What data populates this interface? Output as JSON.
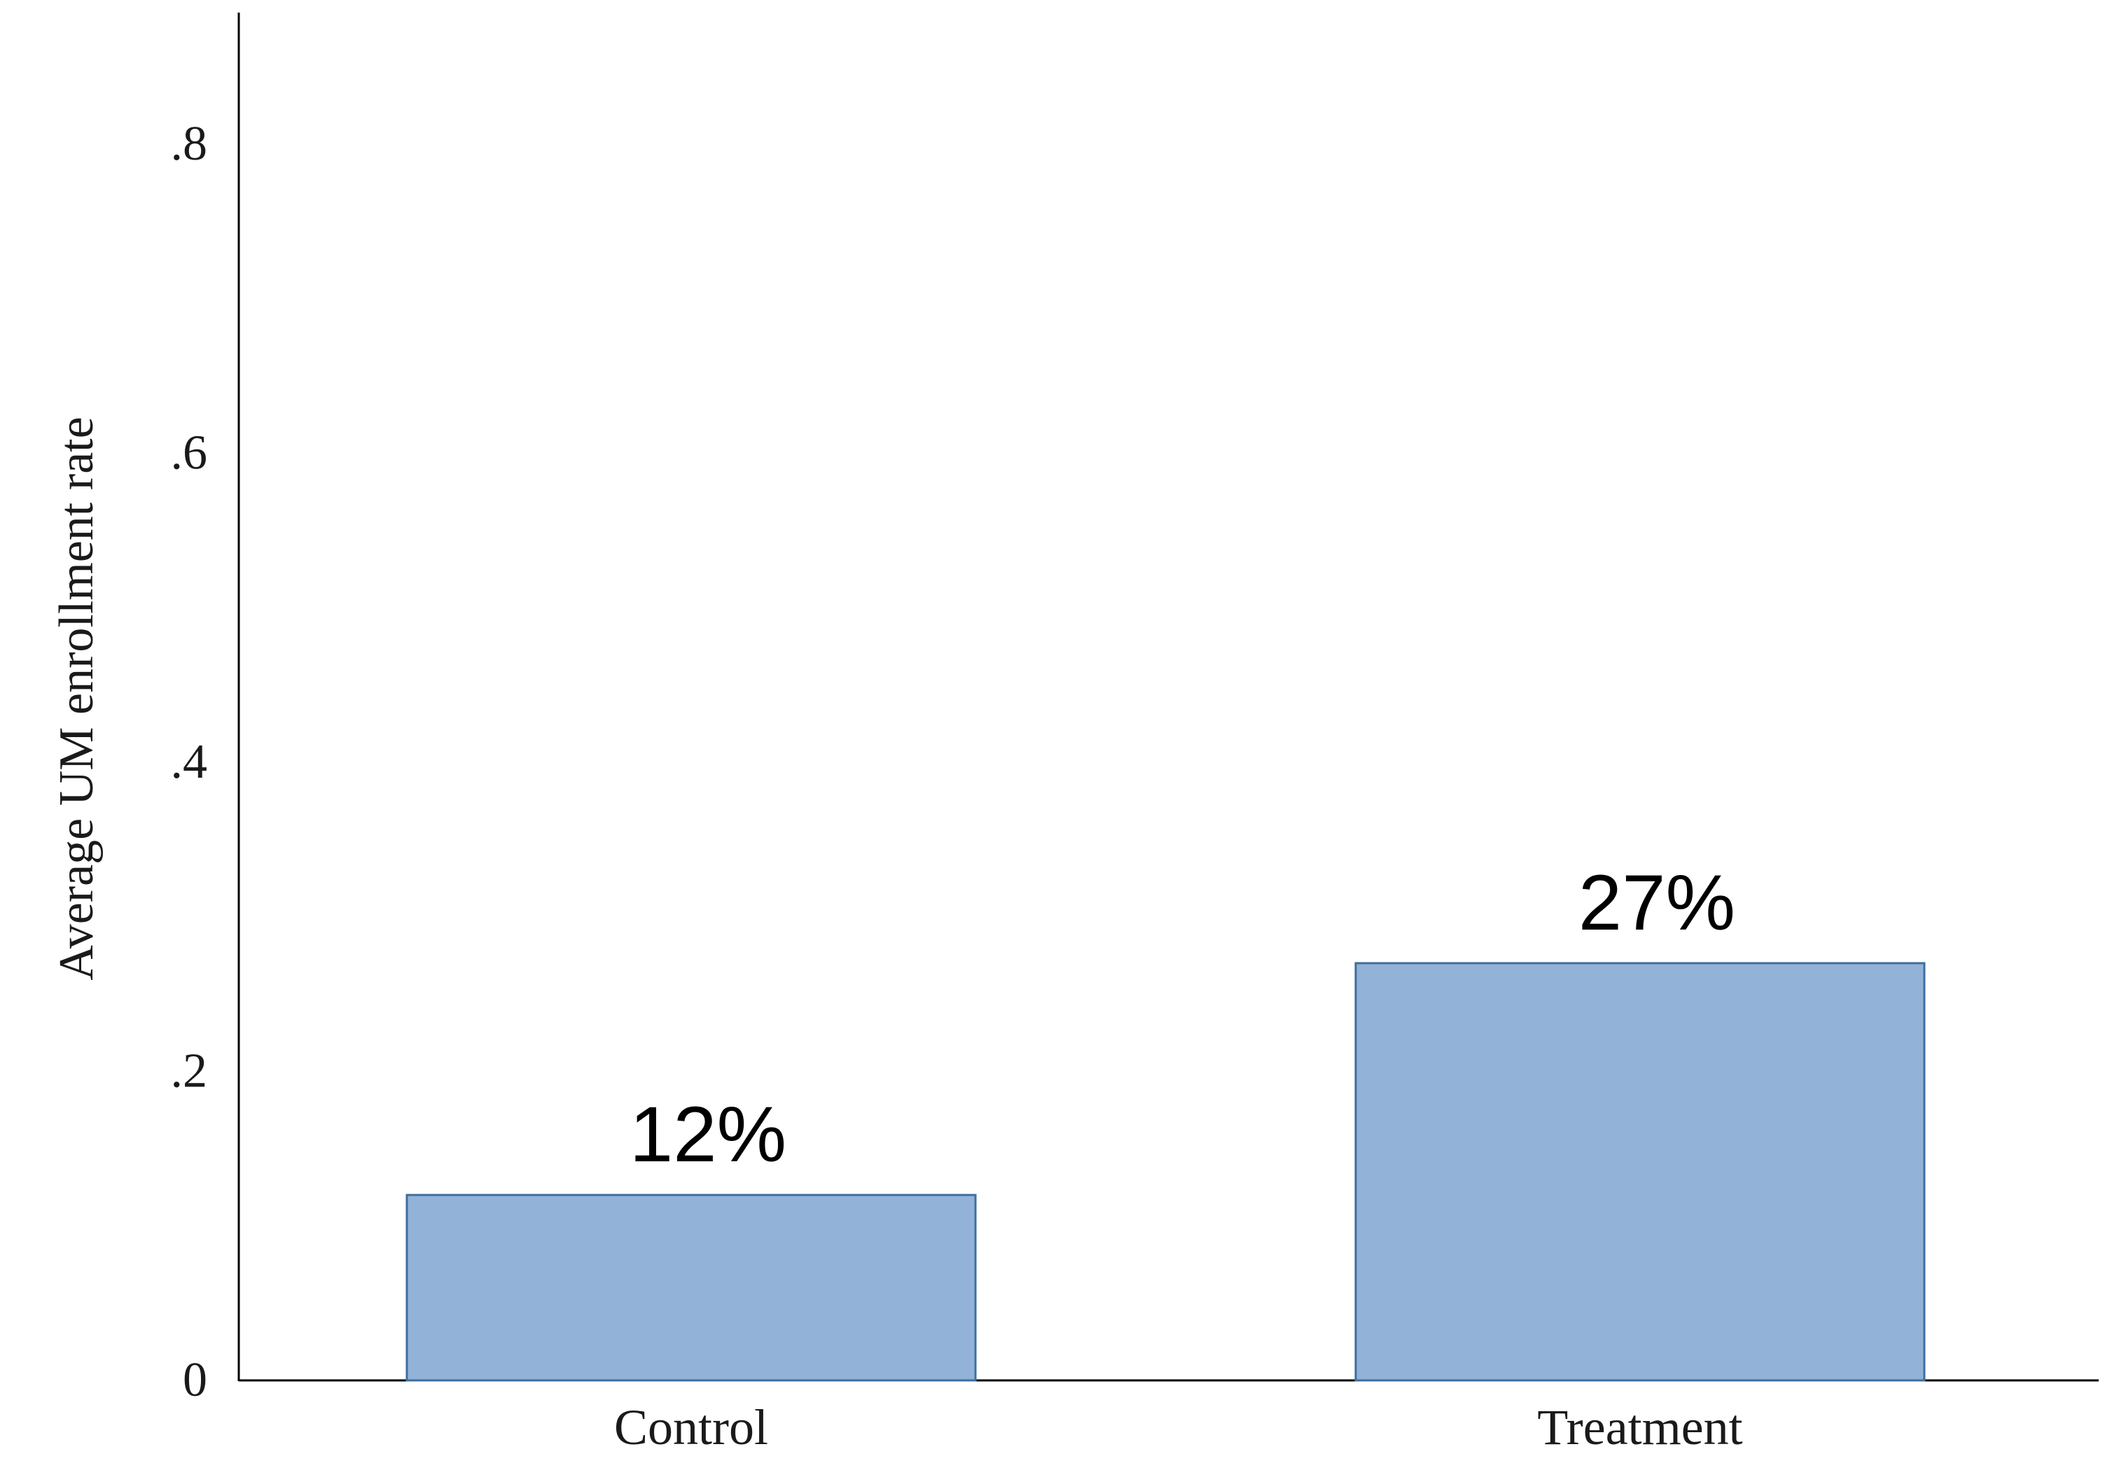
{
  "chart_data": {
    "type": "bar",
    "title": "",
    "xlabel": "",
    "ylabel": "Average UM enrollment rate",
    "categories": [
      "Control",
      "Treatment"
    ],
    "values": [
      0.12,
      0.27
    ],
    "data_labels": [
      "12%",
      "27%"
    ],
    "ylim": [
      0,
      0.88
    ],
    "yticks": [
      0,
      0.2,
      0.4,
      0.6,
      0.8
    ],
    "ytick_labels": [
      "0",
      ".2",
      ".4",
      ".6",
      ".8"
    ],
    "grid": false,
    "legend": "none",
    "colors": {
      "bar_fill": "#92b3d7",
      "bar_stroke": "#3f6e9e",
      "axis": "#000000"
    }
  }
}
